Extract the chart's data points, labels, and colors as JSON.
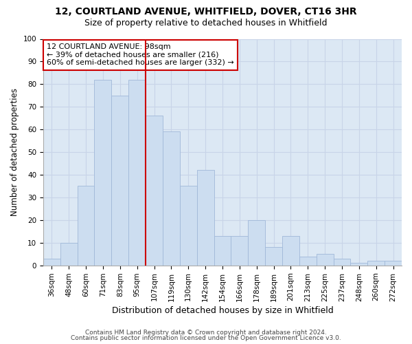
{
  "title1": "12, COURTLAND AVENUE, WHITFIELD, DOVER, CT16 3HR",
  "title2": "Size of property relative to detached houses in Whitfield",
  "xlabel": "Distribution of detached houses by size in Whitfield",
  "ylabel": "Number of detached properties",
  "categories": [
    "36sqm",
    "48sqm",
    "60sqm",
    "71sqm",
    "83sqm",
    "95sqm",
    "107sqm",
    "119sqm",
    "130sqm",
    "142sqm",
    "154sqm",
    "166sqm",
    "178sqm",
    "189sqm",
    "201sqm",
    "213sqm",
    "225sqm",
    "237sqm",
    "248sqm",
    "260sqm",
    "272sqm"
  ],
  "values": [
    3,
    10,
    35,
    82,
    75,
    82,
    66,
    59,
    35,
    42,
    13,
    13,
    20,
    8,
    13,
    4,
    5,
    3,
    1,
    2,
    2
  ],
  "bar_color": "#ccddf0",
  "bar_edge_color": "#a0b8d8",
  "highlight_index": 5,
  "highlight_line_color": "#cc0000",
  "annotation_text": "12 COURTLAND AVENUE: 98sqm\n← 39% of detached houses are smaller (216)\n60% of semi-detached houses are larger (332) →",
  "annotation_box_color": "#ffffff",
  "annotation_box_edge_color": "#cc0000",
  "ylim": [
    0,
    100
  ],
  "yticks": [
    0,
    10,
    20,
    30,
    40,
    50,
    60,
    70,
    80,
    90,
    100
  ],
  "grid_color": "#c8d4e8",
  "bg_color": "#dce8f4",
  "footer1": "Contains HM Land Registry data © Crown copyright and database right 2024.",
  "footer2": "Contains public sector information licensed under the Open Government Licence v3.0.",
  "title1_fontsize": 10,
  "title2_fontsize": 9,
  "xlabel_fontsize": 9,
  "ylabel_fontsize": 8.5,
  "tick_fontsize": 7.5,
  "annotation_fontsize": 8,
  "footer_fontsize": 6.5
}
